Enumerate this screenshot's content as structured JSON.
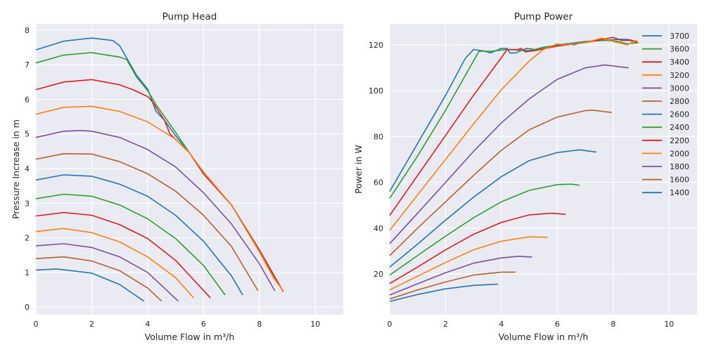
{
  "chart_data": [
    {
      "type": "line",
      "title": "Pump Head",
      "xlabel": "Volume Flow in m³/h",
      "ylabel": "Pressure Increase in m",
      "xlim": [
        0,
        11
      ],
      "ylim": [
        -0.22,
        8.18
      ],
      "xticks": [
        0,
        2,
        4,
        6,
        8,
        10
      ],
      "yticks": [
        0,
        1,
        2,
        3,
        4,
        5,
        6,
        7,
        8
      ],
      "grid": true,
      "series": [
        {
          "name": "3700",
          "color": "#1f77b4",
          "x": [
            0,
            1,
            2,
            2.75,
            3,
            3.6,
            4,
            4.3,
            4.6,
            5,
            5.5,
            6,
            7,
            8,
            8.85
          ],
          "y": [
            7.43,
            7.68,
            7.77,
            7.7,
            7.55,
            6.7,
            6.3,
            5.65,
            5.4,
            4.95,
            4.45,
            3.85,
            2.95,
            1.6,
            0.45
          ]
        },
        {
          "name": "3600",
          "color": "#2ca02c",
          "x": [
            0,
            1,
            2,
            3,
            3.25,
            3.6,
            4,
            4.3,
            5,
            5.5,
            6,
            7,
            8,
            8.85
          ],
          "y": [
            7.05,
            7.28,
            7.35,
            7.22,
            7.15,
            6.65,
            6.25,
            5.85,
            5.05,
            4.45,
            3.85,
            2.95,
            1.6,
            0.45
          ]
        },
        {
          "name": "3400",
          "color": "#e41a1c",
          "x": [
            0,
            1,
            2,
            3,
            3.5,
            4,
            4.2,
            4.6,
            4.8,
            5.5,
            6,
            7,
            8,
            8.85
          ],
          "y": [
            6.28,
            6.5,
            6.57,
            6.42,
            6.27,
            6.08,
            5.9,
            5.4,
            5.0,
            4.45,
            3.85,
            2.95,
            1.65,
            0.45
          ]
        },
        {
          "name": "3200",
          "color": "#ff7f0e",
          "x": [
            0,
            1,
            2,
            3,
            4,
            5,
            5.5,
            6,
            7,
            8,
            8.5,
            8.85
          ],
          "y": [
            5.57,
            5.77,
            5.8,
            5.65,
            5.35,
            4.85,
            4.45,
            3.9,
            2.95,
            1.6,
            0.85,
            0.47
          ]
        },
        {
          "name": "3000",
          "color": "#7b4ea3",
          "x": [
            0,
            1,
            1.6,
            2,
            3,
            4,
            5,
            6,
            7,
            8,
            8.55
          ],
          "y": [
            4.9,
            5.08,
            5.1,
            5.08,
            4.9,
            4.55,
            4.05,
            3.3,
            2.4,
            1.25,
            0.47
          ]
        },
        {
          "name": "2800",
          "color": "#b5602d",
          "x": [
            0,
            1,
            2,
            3,
            4,
            5,
            6,
            7,
            7.95
          ],
          "y": [
            4.27,
            4.43,
            4.42,
            4.2,
            3.85,
            3.35,
            2.65,
            1.75,
            0.47
          ]
        },
        {
          "name": "2600",
          "color": "#1f77b4",
          "x": [
            0,
            1,
            2,
            3,
            4,
            5,
            6,
            7,
            7.4
          ],
          "y": [
            3.67,
            3.82,
            3.78,
            3.55,
            3.2,
            2.65,
            1.9,
            0.9,
            0.35
          ]
        },
        {
          "name": "2400",
          "color": "#2ca02c",
          "x": [
            0,
            1,
            2,
            3,
            4,
            5,
            6,
            6.77
          ],
          "y": [
            3.13,
            3.26,
            3.2,
            2.95,
            2.55,
            1.98,
            1.2,
            0.35
          ]
        },
        {
          "name": "2200",
          "color": "#e41a1c",
          "x": [
            0,
            1,
            2,
            3,
            4,
            5,
            6.25
          ],
          "y": [
            2.63,
            2.73,
            2.65,
            2.38,
            1.98,
            1.35,
            0.26
          ]
        },
        {
          "name": "2000",
          "color": "#ff7f0e",
          "x": [
            0,
            1,
            2,
            3,
            4,
            5,
            5.65
          ],
          "y": [
            2.18,
            2.27,
            2.15,
            1.88,
            1.45,
            0.85,
            0.26
          ]
        },
        {
          "name": "1800",
          "color": "#7b4ea3",
          "x": [
            0,
            1,
            2,
            3,
            4,
            5.1
          ],
          "y": [
            1.77,
            1.83,
            1.72,
            1.45,
            1.0,
            0.17
          ]
        },
        {
          "name": "1600",
          "color": "#b5602d",
          "x": [
            0,
            1,
            2,
            3,
            4,
            4.5
          ],
          "y": [
            1.4,
            1.45,
            1.33,
            1.05,
            0.55,
            0.17
          ]
        },
        {
          "name": "1400",
          "color": "#1f77b4",
          "x": [
            0,
            0.75,
            2,
            3,
            3.87
          ],
          "y": [
            1.07,
            1.1,
            0.98,
            0.65,
            0.17
          ]
        }
      ]
    },
    {
      "type": "line",
      "title": "Pump Power",
      "xlabel": "Volume Flow in m³/h",
      "ylabel": "Power in W",
      "xlim": [
        0,
        11
      ],
      "ylim": [
        2.2,
        129.2
      ],
      "xticks": [
        0,
        2,
        4,
        6,
        8,
        10
      ],
      "yticks": [
        20,
        40,
        60,
        80,
        100,
        120
      ],
      "grid": true,
      "legend": "top-right",
      "series": [
        {
          "name": "3700",
          "color": "#1f77b4",
          "x": [
            0,
            1,
            2,
            2.7,
            3,
            3.4,
            3.6,
            4,
            4.2,
            4.3,
            4.5,
            4.9,
            5.2,
            5.5,
            6,
            7,
            8.3,
            8.6,
            8.9
          ],
          "y": [
            56,
            77,
            98,
            114,
            118,
            117.3,
            116.5,
            118.5,
            118.5,
            116.5,
            116.5,
            118.5,
            118,
            119,
            120,
            121.5,
            122.5,
            122.3,
            121
          ]
        },
        {
          "name": "3600",
          "color": "#2ca02c",
          "x": [
            0,
            1,
            2,
            3.2,
            3.6,
            4.2,
            5,
            6,
            6.5,
            6.6,
            7,
            7.7,
            8.2,
            8.5,
            8.9
          ],
          "y": [
            53,
            71.5,
            91.5,
            117.3,
            117.2,
            118,
            117.5,
            120,
            120.5,
            120,
            121.5,
            122,
            121.5,
            120.5,
            121
          ]
        },
        {
          "name": "3400",
          "color": "#e41a1c",
          "x": [
            0,
            1,
            2,
            3,
            4,
            4.2,
            4.6,
            4.7,
            4.85,
            5.2,
            6,
            7,
            8,
            8.3,
            8.6,
            8.9
          ],
          "y": [
            45.5,
            63,
            80.5,
            98,
            114.5,
            118,
            118,
            118.5,
            117,
            117.5,
            119.5,
            121,
            123.3,
            122,
            122,
            121
          ]
        },
        {
          "name": "3200",
          "color": "#ff7f0e",
          "x": [
            0,
            1,
            2,
            3,
            4,
            5,
            5.5,
            6,
            6.2,
            7,
            7.6,
            8,
            8.5,
            8.8,
            8.9
          ],
          "y": [
            39,
            54.5,
            70,
            85.5,
            100.5,
            113,
            118,
            120.5,
            120,
            121,
            123,
            121.5,
            120,
            122,
            121
          ]
        },
        {
          "name": "3000",
          "color": "#7b4ea3",
          "x": [
            0,
            1,
            2,
            3,
            4,
            5,
            6,
            7,
            7.7,
            8.55
          ],
          "y": [
            33.2,
            46.5,
            60,
            73.5,
            86,
            96.5,
            105,
            110,
            111.3,
            110
          ]
        },
        {
          "name": "2800",
          "color": "#b5602d",
          "x": [
            0,
            1,
            2,
            3,
            4,
            5,
            6,
            7,
            7.3,
            7.95
          ],
          "y": [
            28,
            40,
            51.5,
            63,
            74,
            83,
            88.5,
            91.3,
            91.5,
            90.5
          ]
        },
        {
          "name": "2600",
          "color": "#1f77b4",
          "x": [
            0,
            1,
            2,
            3,
            4,
            5,
            6,
            6.8,
            7.4
          ],
          "y": [
            23,
            33,
            43.5,
            53.5,
            62.5,
            69.5,
            73,
            74.2,
            73.2
          ]
        },
        {
          "name": "2400",
          "color": "#2ca02c",
          "x": [
            0,
            1,
            2,
            3,
            4,
            5,
            6,
            6.5,
            6.8
          ],
          "y": [
            19.5,
            28,
            36.5,
            44.5,
            51.5,
            56.5,
            59,
            59.2,
            58.7
          ]
        },
        {
          "name": "2200",
          "color": "#e41a1c",
          "x": [
            0,
            1,
            2,
            3,
            4,
            5,
            5.8,
            6.3
          ],
          "y": [
            15.8,
            23,
            30.5,
            37.3,
            42.5,
            45.8,
            46.5,
            46
          ]
        },
        {
          "name": "2000",
          "color": "#ff7f0e",
          "x": [
            0,
            1,
            2,
            3,
            4,
            5,
            5.65
          ],
          "y": [
            13,
            19,
            25,
            30.5,
            34.3,
            36.2,
            36
          ]
        },
        {
          "name": "1800",
          "color": "#7b4ea3",
          "x": [
            0,
            1,
            2,
            3,
            4,
            4.6,
            5.1
          ],
          "y": [
            10.8,
            15.7,
            20.5,
            24.7,
            27,
            27.7,
            27.4
          ]
        },
        {
          "name": "1600",
          "color": "#b5602d",
          "x": [
            0,
            1,
            2,
            3,
            4,
            4.5
          ],
          "y": [
            9,
            13,
            16.5,
            19.5,
            20.8,
            20.8
          ]
        },
        {
          "name": "1400",
          "color": "#1f77b4",
          "x": [
            0,
            1,
            2,
            3,
            3.88
          ],
          "y": [
            8,
            11,
            13.5,
            15,
            15.5
          ]
        }
      ]
    }
  ]
}
